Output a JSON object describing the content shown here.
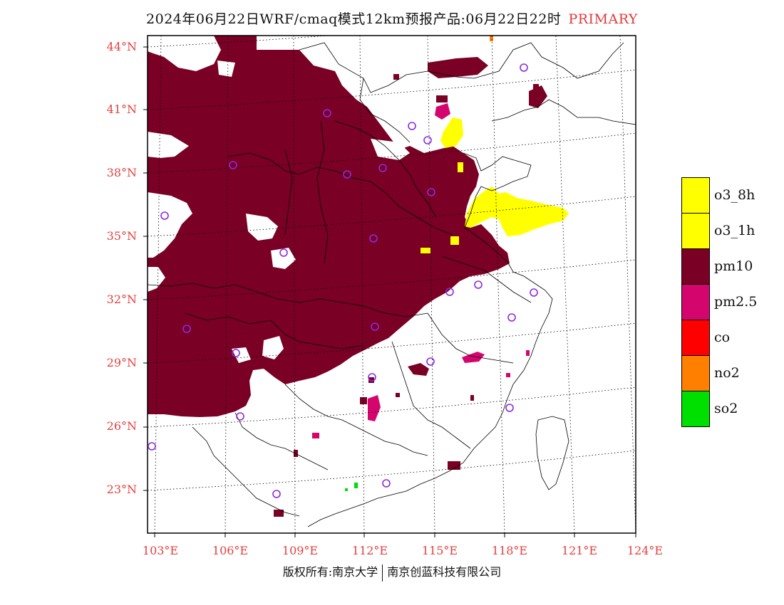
{
  "title": {
    "main": "2024年06月22日WRF/cmaq模式12km预报产品:06月22日22时",
    "primary": "PRIMARY"
  },
  "axes": {
    "lat_labels": [
      "44°N",
      "41°N",
      "38°N",
      "35°N",
      "32°N",
      "29°N",
      "26°N",
      "23°N"
    ],
    "lon_labels": [
      "103°E",
      "106°E",
      "109°E",
      "112°E",
      "115°E",
      "118°E",
      "121°E",
      "124°E"
    ]
  },
  "legend": {
    "items": [
      {
        "label": "o3_8h",
        "color": "#ffff00"
      },
      {
        "label": "o3_1h",
        "color": "#ffff00"
      },
      {
        "label": "pm10",
        "color": "#7a0026"
      },
      {
        "label": "pm2.5",
        "color": "#d4066e"
      },
      {
        "label": "co",
        "color": "#ff0000"
      },
      {
        "label": "no2",
        "color": "#ff7f00"
      },
      {
        "label": "so2",
        "color": "#00e000"
      }
    ]
  },
  "footer": {
    "left": "版权所有:南京大学",
    "right": "南京创蓝科技有限公司"
  },
  "colors": {
    "pm10": "#7a0026",
    "o3": "#ffff00",
    "pm25": "#d4066e",
    "station": "#8a2be2",
    "label_red": "#e34040"
  }
}
